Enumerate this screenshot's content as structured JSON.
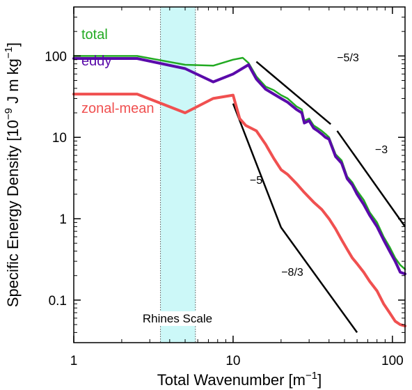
{
  "chart_data": {
    "type": "line",
    "xscale": "log",
    "yscale": "log",
    "xlim": [
      1,
      120
    ],
    "ylim": [
      0.03,
      400
    ],
    "xticks": [
      {
        "value": 1,
        "label": "1"
      },
      {
        "value": 10,
        "label": "10"
      },
      {
        "value": 100,
        "label": "100"
      }
    ],
    "yticks": [
      {
        "value": 0.1,
        "label": "0.1"
      },
      {
        "value": 1,
        "label": "1"
      },
      {
        "value": 10,
        "label": "10"
      },
      {
        "value": 100,
        "label": "100"
      }
    ],
    "xlabel": {
      "main": "Total Wavenumber [m",
      "sup": "−1",
      "tail": "]"
    },
    "ylabel": {
      "main": "Specific Energy Density [10",
      "sup1": "−9",
      "mid": " J m kg",
      "sup2": "−1",
      "tail": "]"
    },
    "grid": false,
    "band": {
      "label": "Rhines Scale",
      "x_start": 3.5,
      "x_end": 5.8,
      "color": "#ccf8f8"
    },
    "series": [
      {
        "name": "total",
        "color": "#22aa22",
        "width": 2.5,
        "x": [
          1,
          2.5,
          5,
          7.5,
          10,
          11.5,
          12.5,
          14,
          16,
          18,
          20,
          22,
          25,
          27,
          28,
          30,
          32,
          34,
          36,
          38,
          40,
          44,
          48,
          52,
          56,
          60,
          66,
          72,
          80,
          88,
          96,
          104,
          112,
          120
        ],
        "y": [
          100,
          100,
          78,
          76,
          90,
          95,
          82,
          56,
          42,
          38,
          33,
          30,
          24,
          22,
          16,
          17,
          14,
          13,
          12,
          11,
          10,
          6.2,
          5.2,
          3.3,
          2.8,
          2.2,
          1.7,
          1.2,
          0.9,
          0.6,
          0.45,
          0.33,
          0.27,
          0.24
        ]
      },
      {
        "name": "eddy",
        "color": "#5a0aaa",
        "width": 4,
        "x": [
          1,
          2.5,
          5,
          7.5,
          10,
          12.5,
          14,
          16,
          18,
          20,
          22,
          25,
          27,
          28,
          30,
          32,
          34,
          36,
          38,
          40,
          44,
          48,
          52,
          56,
          60,
          66,
          72,
          80,
          88,
          96,
          104,
          112,
          120
        ],
        "y": [
          93,
          93,
          70,
          48,
          60,
          78,
          52,
          39,
          34,
          30,
          27,
          22,
          20,
          15,
          16,
          13,
          12,
          11,
          10,
          9.5,
          5.8,
          4.8,
          3.1,
          2.6,
          2.0,
          1.5,
          1.1,
          0.8,
          0.55,
          0.4,
          0.3,
          0.22,
          0.21
        ]
      },
      {
        "name": "zonal-mean",
        "color": "#f05050",
        "width": 4,
        "x": [
          1,
          2.5,
          5,
          7.5,
          10,
          11,
          12,
          14,
          16,
          18,
          20,
          22,
          25,
          28,
          32,
          36,
          40,
          44,
          48,
          52,
          56,
          60,
          66,
          72,
          80,
          88,
          96,
          104,
          112,
          120
        ],
        "y": [
          34,
          34,
          20,
          30,
          33,
          17,
          14,
          12,
          8.2,
          5.5,
          4.0,
          3.5,
          2.7,
          2.1,
          1.6,
          1.3,
          1.0,
          0.75,
          0.55,
          0.42,
          0.33,
          0.28,
          0.22,
          0.17,
          0.13,
          0.09,
          0.07,
          0.055,
          0.05,
          0.048
        ]
      }
    ],
    "reference_slopes": [
      {
        "label": "−5/3",
        "x": [
          14,
          41
        ],
        "y": [
          85,
          14.5
        ]
      },
      {
        "label": "−3",
        "x": [
          45,
          120
        ],
        "y": [
          12,
          0.8
        ]
      },
      {
        "label": "−5",
        "x": [
          10,
          20
        ],
        "y": [
          26,
          0.78
        ]
      },
      {
        "label": "−8/3",
        "x": [
          20,
          60
        ],
        "y": [
          0.78,
          0.04
        ]
      }
    ]
  }
}
